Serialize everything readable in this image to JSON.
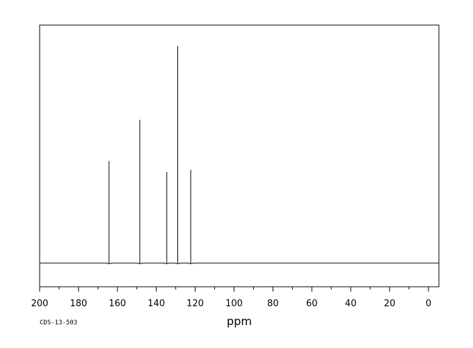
{
  "chart_data": {
    "type": "line",
    "xlabel": "ppm",
    "xlim": [
      200,
      -5
    ],
    "x_ticks": [
      200,
      180,
      160,
      140,
      120,
      100,
      80,
      60,
      40,
      20,
      0
    ],
    "x_reversed": true,
    "grid": false,
    "peaks": [
      {
        "ppm": 164.3,
        "intensity": 0.47
      },
      {
        "ppm": 148.5,
        "intensity": 0.66
      },
      {
        "ppm": 134.6,
        "intensity": 0.42
      },
      {
        "ppm": 129.0,
        "intensity": 1.0
      },
      {
        "ppm": 122.3,
        "intensity": 0.43
      }
    ]
  },
  "spectrum_code": "CDS-13-503",
  "colors": {
    "line": "#000000",
    "frame": "#000000",
    "background": "#ffffff"
  }
}
